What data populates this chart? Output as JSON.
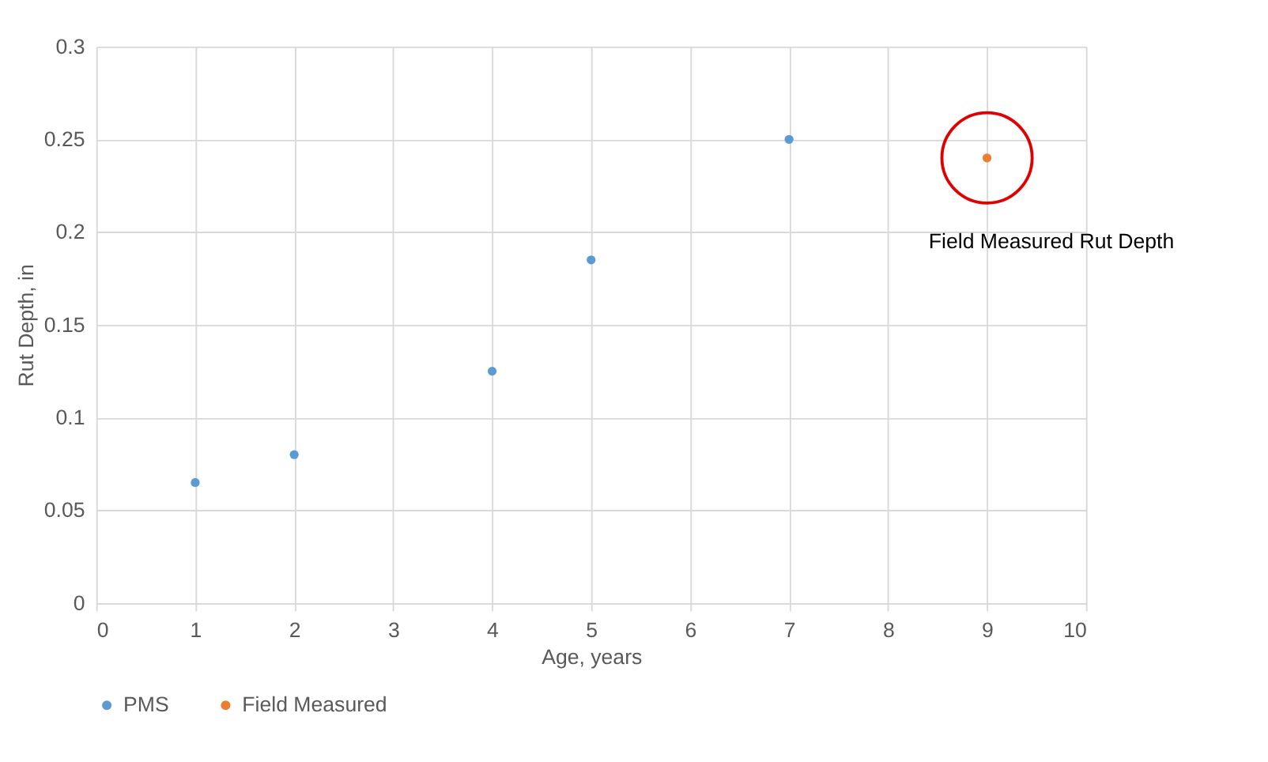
{
  "chart_data": {
    "type": "scatter",
    "xlabel": "Age, years",
    "ylabel": "Rut Depth, in",
    "x": [
      1,
      2,
      4,
      5,
      7
    ],
    "series": [
      {
        "name": "PMS",
        "color": "#5b9bd5",
        "values": [
          0.065,
          0.08,
          0.125,
          0.185,
          0.25
        ]
      },
      {
        "name": "Field Measured",
        "color": "#ed7d31",
        "x": [
          9
        ],
        "values": [
          0.24
        ]
      }
    ],
    "annotations": [
      "Field Measured Rut Depth"
    ],
    "xlim": [
      0,
      10
    ],
    "xticks": [
      0,
      1,
      2,
      3,
      4,
      5,
      6,
      7,
      8,
      9,
      10
    ],
    "ylim": [
      0,
      0.3
    ],
    "yticks": [
      0,
      0.05,
      0.1,
      0.15,
      0.2,
      0.25,
      0.3
    ],
    "grid": true,
    "legend": "bottom",
    "marker": "circle"
  }
}
